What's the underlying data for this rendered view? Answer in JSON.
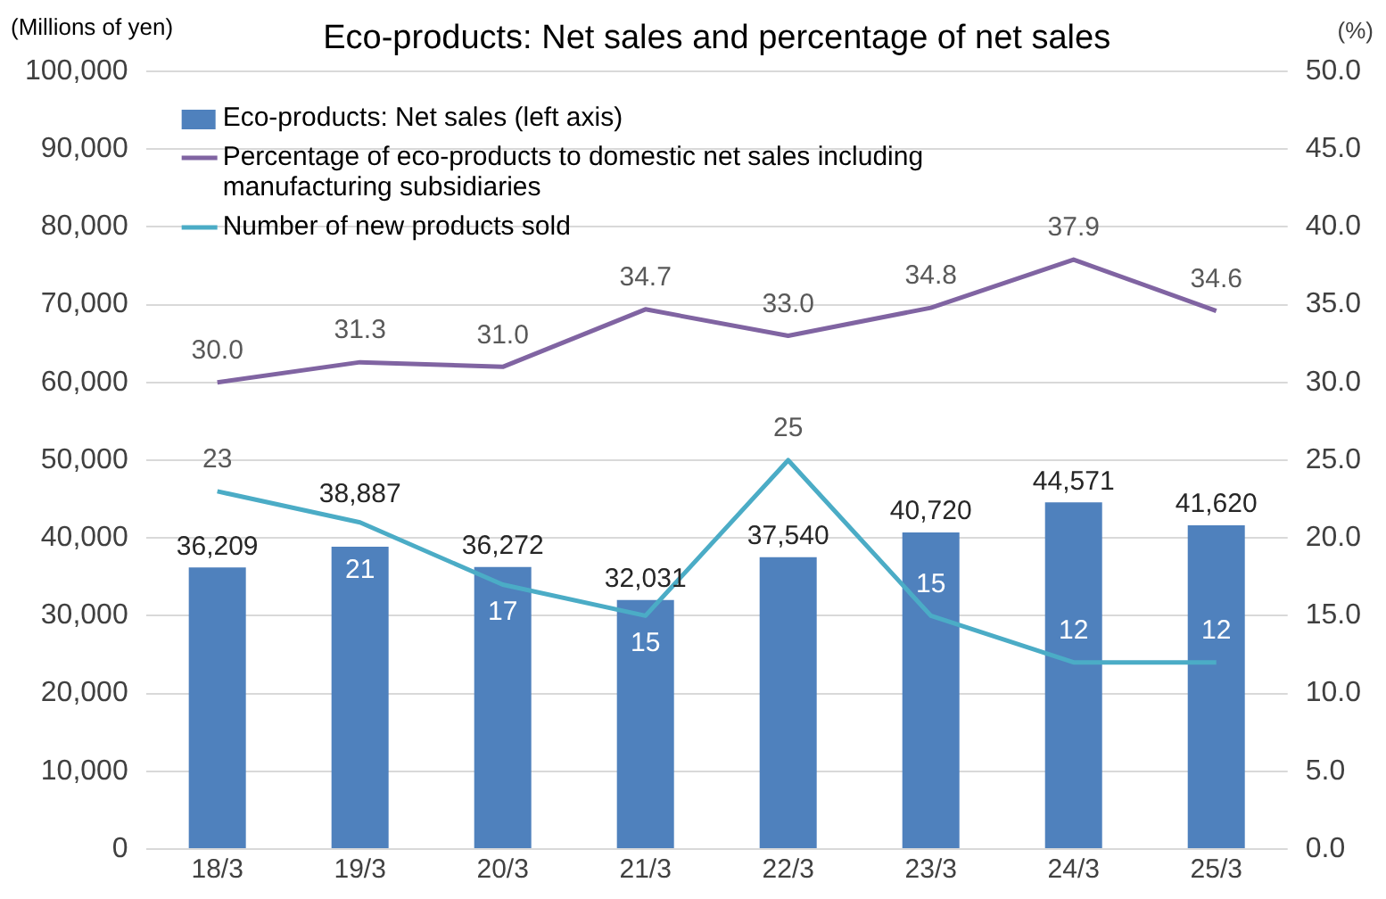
{
  "chart_data": {
    "type": "bar",
    "title": "Eco-products: Net sales and percentage of net sales",
    "ylabel": "(Millions of yen)",
    "y2label": "(%)",
    "categories": [
      "18/3",
      "19/3",
      "20/3",
      "21/3",
      "22/3",
      "23/3",
      "24/3",
      "25/3"
    ],
    "series": [
      {
        "name": "Eco-products: Net sales (left axis)",
        "color": "#4f81bd",
        "values": [
          36209,
          38887,
          36272,
          32031,
          37540,
          40720,
          44571,
          41620
        ],
        "value_labels": [
          "36,209",
          "38,887",
          "36,272",
          "32,031",
          "37,540",
          "40,720",
          "44,571",
          "41,620"
        ]
      },
      {
        "name": "Percentage of eco-products to domestic net sales including manufacturing subsidiaries",
        "type": "line",
        "axis": "y2",
        "color": "#8064a2",
        "values": [
          30.0,
          31.3,
          31.0,
          34.7,
          33.0,
          34.8,
          37.9,
          34.6
        ],
        "value_labels": [
          "30.0",
          "31.3",
          "31.0",
          "34.7",
          "33.0",
          "34.8",
          "37.9",
          "34.6"
        ]
      },
      {
        "name": "Number of new products sold",
        "type": "line",
        "axis": "y2",
        "color": "#4bacc6",
        "values": [
          23,
          21,
          17,
          15,
          25,
          15,
          12,
          12
        ],
        "value_labels": [
          "23",
          "21",
          "17",
          "15",
          "25",
          "15",
          "12",
          "12"
        ]
      }
    ],
    "ylim": [
      0,
      100000
    ],
    "yticks": [
      0,
      {
        "value": 10000,
        "label": "10,000"
      },
      {
        "value": 20000,
        "label": "20,000"
      },
      {
        "value": 30000,
        "label": "30,000"
      },
      {
        "value": 40000,
        "label": "40,000"
      },
      {
        "value": 50000,
        "label": "50,000"
      },
      {
        "value": 60000,
        "label": "60,000"
      },
      {
        "value": 70000,
        "label": "70,000"
      },
      {
        "value": 80000,
        "label": "80,000"
      },
      {
        "value": 90000,
        "label": "90,000"
      },
      {
        "value": 100000,
        "label": "100,000"
      }
    ],
    "y2lim": [
      0,
      50
    ],
    "y2ticks": [
      {
        "value": 0,
        "label": "0.0"
      },
      {
        "value": 5,
        "label": "5.0"
      },
      {
        "value": 10,
        "label": "10.0"
      },
      {
        "value": 15,
        "label": "15.0"
      },
      {
        "value": 20,
        "label": "20.0"
      },
      {
        "value": 25,
        "label": "25.0"
      },
      {
        "value": 30,
        "label": "30.0"
      },
      {
        "value": 35,
        "label": "35.0"
      },
      {
        "value": 40,
        "label": "40.0"
      },
      {
        "value": 45,
        "label": "45.0"
      },
      {
        "value": 50,
        "label": "50.0"
      }
    ],
    "grid": "y",
    "legend": "top left",
    "marker": "none",
    "line_style": "solid"
  }
}
